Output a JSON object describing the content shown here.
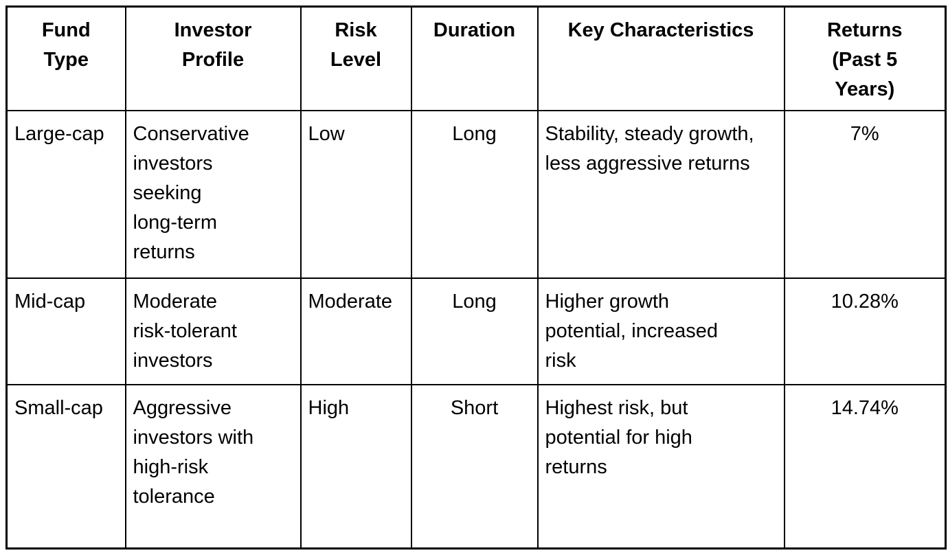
{
  "table": {
    "columns": [
      {
        "id": "fund_type",
        "label": "Fund\nType"
      },
      {
        "id": "investor_profile",
        "label": "Investor\nProfile"
      },
      {
        "id": "risk_level",
        "label": "Risk\nLevel"
      },
      {
        "id": "duration",
        "label": "Duration"
      },
      {
        "id": "key_characteristics",
        "label": "Key Characteristics"
      },
      {
        "id": "returns_past_5_years",
        "label": "Returns\n(Past 5\nYears)"
      }
    ],
    "rows": [
      {
        "fund_type": "Large-cap",
        "investor_profile": "Conservative\ninvestors\nseeking\nlong-term\nreturns",
        "risk_level": "Low",
        "duration": "Long",
        "key_characteristics": "Stability, steady growth,\nless aggressive returns",
        "returns_past_5_years": "7%"
      },
      {
        "fund_type": "Mid-cap",
        "investor_profile": "Moderate\nrisk-tolerant\ninvestors",
        "risk_level": "Moderate",
        "duration": "Long",
        "key_characteristics": "Higher growth\npotential, increased\nrisk",
        "returns_past_5_years": "10.28%"
      },
      {
        "fund_type": "Small-cap",
        "investor_profile": "Aggressive\ninvestors with\nhigh-risk\ntolerance",
        "risk_level": "High",
        "duration": "Short",
        "key_characteristics": "Highest risk, but\npotential for high\nreturns",
        "returns_past_5_years": "14.74%"
      }
    ]
  },
  "colors": {
    "text": "#000000",
    "border": "#000000",
    "background": "#ffffff"
  }
}
